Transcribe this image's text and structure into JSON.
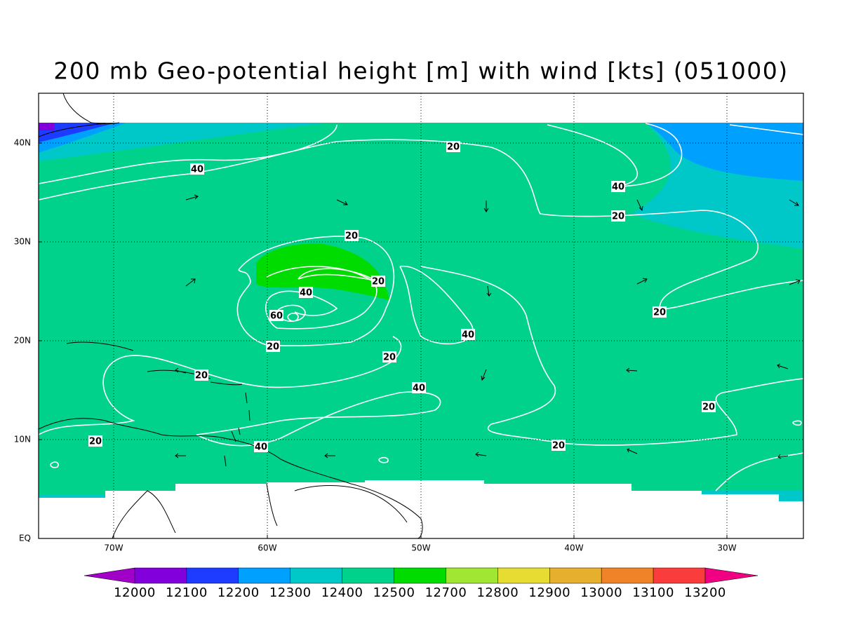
{
  "title": "200 mb Geo-potential height [m] with wind [kts] (051000)",
  "map": {
    "lon_labels": [
      "70W",
      "60W",
      "50W",
      "40W",
      "30W"
    ],
    "lat_labels": [
      "EQ",
      "10N",
      "20N",
      "30N",
      "40N"
    ],
    "contour_labels": [
      "40",
      "20",
      "40",
      "20",
      "20",
      "20",
      "40",
      "60",
      "20",
      "40",
      "20",
      "20",
      "20",
      "40",
      "20",
      "20",
      "40",
      "20"
    ]
  },
  "colorbar": {
    "colors": [
      "#a000c8",
      "#8200dc",
      "#1e3cff",
      "#00a0ff",
      "#00c8c8",
      "#00d28c",
      "#00dc00",
      "#a0e632",
      "#e6dc32",
      "#e6af2d",
      "#f08228",
      "#fa3c3c",
      "#f00082"
    ],
    "labels": [
      "12000",
      "12100",
      "12200",
      "12300",
      "12400",
      "12500",
      "12700",
      "12800",
      "12900",
      "13000",
      "13100",
      "13200"
    ]
  }
}
